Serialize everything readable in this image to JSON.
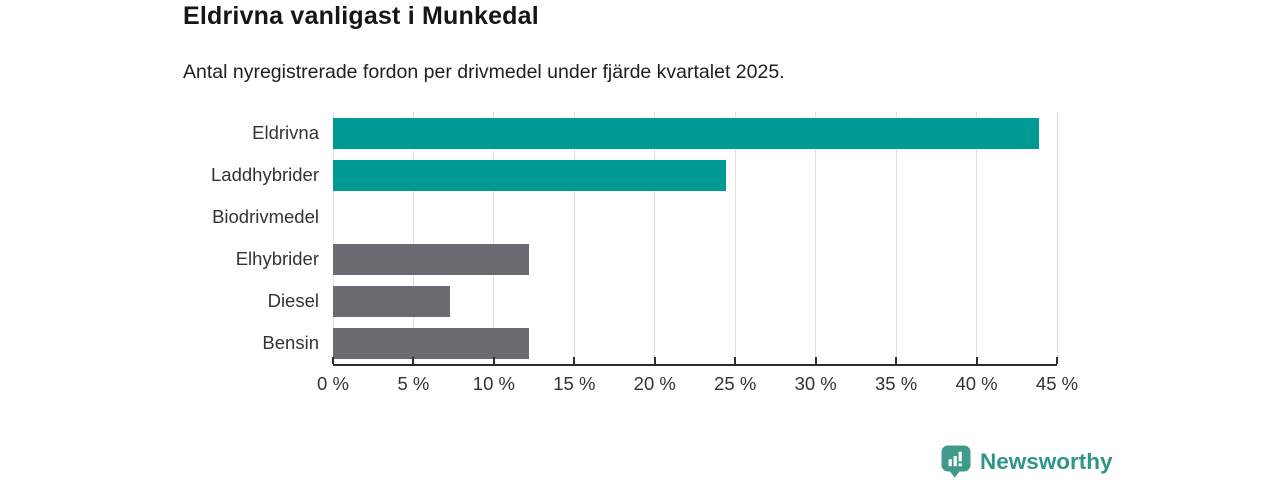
{
  "title": "Eldrivna vanligast i Munkedal",
  "subtitle": "Antal nyregistrerade fordon per drivmedel under fjärde kvartalet 2025.",
  "branding": {
    "logo_text": "Newsworthy",
    "logo_icon": "bar-chart-speech-bubble-icon"
  },
  "colors": {
    "highlight_bar": "#009a94",
    "default_bar": "#6c6b71",
    "gridline": "#e0e0e0",
    "axis": "#2e2e2e",
    "brand_icon": "#3f9a8c",
    "brand_text": "#2e9687",
    "title_text": "#161616",
    "label_text": "#333333"
  },
  "chart_data": {
    "type": "bar",
    "orientation": "horizontal",
    "title": "Eldrivna vanligast i Munkedal",
    "subtitle": "Antal nyregistrerade fordon per drivmedel under fjärde kvartalet 2025.",
    "categories": [
      "Eldrivna",
      "Laddhybrider",
      "Biodrivmedel",
      "Elhybrider",
      "Diesel",
      "Bensin"
    ],
    "values": [
      43.9,
      24.4,
      0,
      12.2,
      7.3,
      12.2
    ],
    "unit": "%",
    "bar_colors": [
      "#009a94",
      "#009a94",
      "#6c6b71",
      "#6c6b71",
      "#6c6b71",
      "#6c6b71"
    ],
    "xlabel": "",
    "ylabel": "",
    "xlim": [
      0,
      45
    ],
    "x_tick_values": [
      0,
      5,
      10,
      15,
      20,
      25,
      30,
      35,
      40,
      45
    ],
    "x_ticks": [
      "0 %",
      "5 %",
      "10 %",
      "15 %",
      "20 %",
      "25 %",
      "30 %",
      "35 %",
      "40 %",
      "45 %"
    ],
    "grid": true,
    "legend": false
  }
}
